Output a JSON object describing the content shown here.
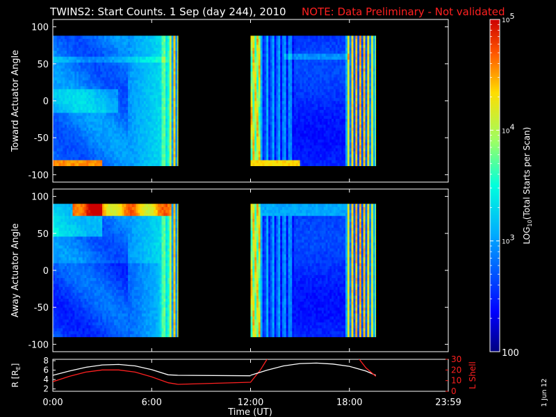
{
  "title": {
    "main": "TWINS2: Start Counts.  1 Sep (day 244), 2010",
    "note": "NOTE: Data Preliminary - Not validated"
  },
  "side_stamp": "1 Jun 12",
  "colors": {
    "background": "#000000",
    "frame": "#ffffff",
    "note": "#ff2020",
    "r_line": "#ffffff",
    "l_line": "#ff2020"
  },
  "chart_data": [
    {
      "type": "heatmap",
      "ylabel": "Toward Actuator Angle",
      "ylim": [
        -110,
        110
      ],
      "yticks": [
        100,
        50,
        0,
        -50,
        -100
      ],
      "xlim": [
        0,
        24
      ],
      "coverage_hours": [
        [
          0,
          7.6
        ],
        [
          12.0,
          19.6
        ]
      ],
      "angle_range": [
        -88,
        88
      ],
      "grid": false
    },
    {
      "type": "heatmap",
      "ylabel": "Away Actuator Angle",
      "ylim": [
        -110,
        110
      ],
      "yticks": [
        100,
        50,
        0,
        -50,
        -100
      ],
      "xlim": [
        0,
        24
      ],
      "coverage_hours": [
        [
          0,
          7.6
        ],
        [
          12.0,
          19.6
        ]
      ],
      "angle_range": [
        -90,
        90
      ],
      "grid": false
    },
    {
      "type": "line",
      "xlabel": "Time (UT)",
      "xlim": [
        0,
        24
      ],
      "xticks": [
        0,
        6,
        12,
        18,
        24
      ],
      "xtick_labels": [
        "0:00",
        "6:00",
        "12:00",
        "18:00",
        "23:59"
      ],
      "left_axis": {
        "label": "R [R",
        "label_sub": "E",
        "label_tail": "]",
        "ylim": [
          1.5,
          8.3
        ],
        "yticks": [
          2,
          4,
          6,
          8
        ]
      },
      "right_axis": {
        "label": "L Shell",
        "ylim": [
          0,
          30
        ],
        "yticks": [
          0,
          10,
          20,
          30
        ]
      },
      "series": [
        {
          "axis": "left",
          "x": [
            0.0,
            1.0,
            2.0,
            3.0,
            4.0,
            5.0,
            6.0,
            7.0,
            7.6,
            12.0
          ],
          "y": [
            4.9,
            5.8,
            6.6,
            7.1,
            7.2,
            6.9,
            6.1,
            5.0,
            4.9,
            4.8
          ]
        },
        {
          "axis": "right",
          "x": [
            0.0,
            1.0,
            2.0,
            3.0,
            4.0,
            5.0,
            6.0,
            7.0,
            7.6,
            12.0,
            12.6,
            13.0,
            13.2
          ],
          "y": [
            9.0,
            14.0,
            18.0,
            20.0,
            20.0,
            18.0,
            13.5,
            8.0,
            6.5,
            8.5,
            20.0,
            30.0,
            32.0
          ]
        },
        {
          "axis": "left",
          "x": [
            12.0,
            13.0,
            14.0,
            15.0,
            16.0,
            17.0,
            18.0,
            19.0,
            19.6
          ],
          "y": [
            4.9,
            6.0,
            6.9,
            7.4,
            7.5,
            7.3,
            6.8,
            5.8,
            4.9
          ]
        },
        {
          "axis": "right",
          "x": [
            18.4,
            18.6,
            19.0,
            19.6
          ],
          "y": [
            32.0,
            30.0,
            22.0,
            14.0
          ]
        }
      ]
    }
  ],
  "colorbar": {
    "label_pre": "LOG",
    "label_sub": "10",
    "label_post": "(Total Starts per Scan)",
    "scale": "log",
    "range": [
      100,
      100000
    ],
    "ticks": [
      {
        "value": 100000,
        "base": "10",
        "exp": "5"
      },
      {
        "value": 10000,
        "base": "10",
        "exp": "4"
      },
      {
        "value": 1000,
        "base": "10",
        "exp": "3"
      },
      {
        "value": 100,
        "base": "100",
        "exp": ""
      }
    ]
  }
}
